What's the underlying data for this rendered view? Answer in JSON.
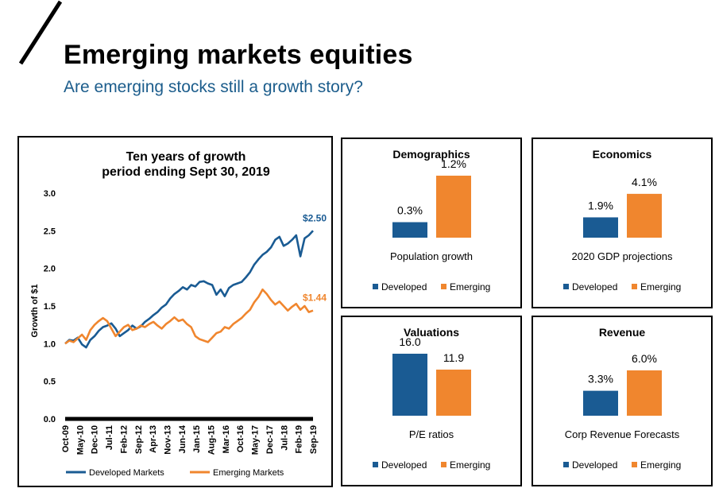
{
  "header": {
    "title": "Emerging markets equities",
    "subtitle": "Are emerging stocks still a growth story?"
  },
  "colors": {
    "developed": "#1a5b93",
    "emerging": "#f0862e",
    "text": "#000000",
    "subtitle": "#1c5d8c"
  },
  "chart_data": [
    {
      "type": "line",
      "title": "Ten years of growth",
      "subtitle": "period ending Sept 30, 2019",
      "xlabel": "",
      "ylabel": "Growth of $1",
      "ylim": [
        0,
        3.0
      ],
      "yticks": [
        "0.0",
        "0.5",
        "1.0",
        "1.5",
        "2.0",
        "2.5",
        "3.0"
      ],
      "x_ticks": [
        "Oct-09",
        "May-10",
        "Dec-10",
        "Jul-11",
        "Feb-12",
        "Sep-12",
        "Apr-13",
        "Nov-13",
        "Jun-14",
        "Jan-15",
        "Aug-15",
        "Mar-16",
        "Oct-16",
        "May-17",
        "Dec-17",
        "Jul-18",
        "Feb-19",
        "Sep-19"
      ],
      "legend": "bottom",
      "series": [
        {
          "name": "Developed Markets",
          "end_label": "$2.50",
          "values": [
            1.0,
            1.05,
            1.04,
            1.08,
            0.99,
            0.95,
            1.05,
            1.1,
            1.17,
            1.22,
            1.24,
            1.27,
            1.2,
            1.1,
            1.14,
            1.18,
            1.24,
            1.2,
            1.23,
            1.29,
            1.33,
            1.38,
            1.42,
            1.48,
            1.52,
            1.6,
            1.66,
            1.7,
            1.75,
            1.72,
            1.78,
            1.76,
            1.82,
            1.83,
            1.8,
            1.78,
            1.65,
            1.72,
            1.63,
            1.74,
            1.78,
            1.8,
            1.82,
            1.88,
            1.95,
            2.05,
            2.12,
            2.18,
            2.22,
            2.28,
            2.38,
            2.42,
            2.3,
            2.33,
            2.38,
            2.44,
            2.16,
            2.4,
            2.44,
            2.5
          ]
        },
        {
          "name": "Emerging Markets",
          "end_label": "$1.44",
          "values": [
            1.0,
            1.04,
            1.02,
            1.07,
            1.12,
            1.05,
            1.18,
            1.25,
            1.3,
            1.34,
            1.3,
            1.2,
            1.1,
            1.16,
            1.22,
            1.25,
            1.18,
            1.2,
            1.24,
            1.22,
            1.26,
            1.29,
            1.24,
            1.2,
            1.26,
            1.3,
            1.35,
            1.3,
            1.32,
            1.26,
            1.22,
            1.1,
            1.06,
            1.04,
            1.02,
            1.08,
            1.14,
            1.16,
            1.22,
            1.2,
            1.26,
            1.3,
            1.34,
            1.4,
            1.45,
            1.55,
            1.62,
            1.72,
            1.66,
            1.58,
            1.52,
            1.56,
            1.5,
            1.44,
            1.49,
            1.53,
            1.45,
            1.5,
            1.42,
            1.44
          ]
        }
      ]
    },
    {
      "type": "bar",
      "title": "Demographics",
      "categories": [
        "Developed",
        "Emerging"
      ],
      "values": [
        0.3,
        1.2
      ],
      "value_labels": [
        "0.3%",
        "1.2%"
      ],
      "xlabel": "Population growth",
      "ylim": [
        0,
        1.2
      ]
    },
    {
      "type": "bar",
      "title": "Economics",
      "categories": [
        "Developed",
        "Emerging"
      ],
      "values": [
        1.9,
        4.1
      ],
      "value_labels": [
        "1.9%",
        "4.1%"
      ],
      "xlabel": "2020 GDP projections",
      "ylim": [
        0,
        5.8
      ]
    },
    {
      "type": "bar",
      "title": "Valuations",
      "categories": [
        "Developed",
        "Emerging"
      ],
      "values": [
        16.0,
        11.9
      ],
      "value_labels": [
        "16.0",
        "11.9"
      ],
      "xlabel": "P/E ratios",
      "ylim": [
        0,
        16.0
      ]
    },
    {
      "type": "bar",
      "title": "Revenue",
      "categories": [
        "Developed",
        "Emerging"
      ],
      "values": [
        3.3,
        6.0
      ],
      "value_labels": [
        "3.3%",
        "6.0%"
      ],
      "xlabel": "Corp Revenue Forecasts",
      "ylim": [
        0,
        8.2
      ]
    }
  ]
}
